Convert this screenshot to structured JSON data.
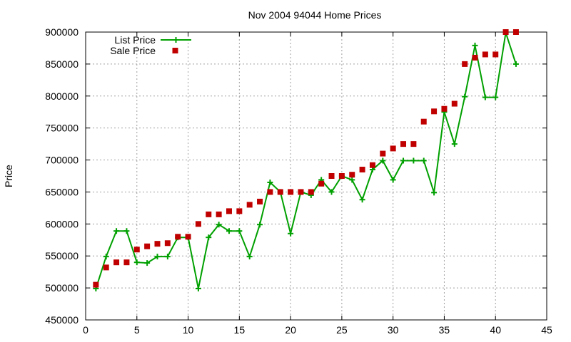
{
  "chart_data": {
    "type": "line",
    "title": "Nov 2004 94044 Home Prices",
    "xlabel": "",
    "ylabel": "Price",
    "xlim": [
      0,
      45
    ],
    "ylim": [
      450000,
      900000
    ],
    "x_ticks": [
      0,
      5,
      10,
      15,
      20,
      25,
      30,
      35,
      40,
      45
    ],
    "y_ticks": [
      450000,
      500000,
      550000,
      600000,
      650000,
      700000,
      750000,
      800000,
      850000,
      900000
    ],
    "grid": true,
    "legend_position": "top-left",
    "series": [
      {
        "name": "List Price",
        "kind": "line-points",
        "color": "#00a000",
        "x": [
          1,
          2,
          3,
          4,
          5,
          6,
          7,
          8,
          9,
          10,
          11,
          12,
          13,
          14,
          15,
          16,
          17,
          18,
          19,
          20,
          21,
          22,
          23,
          24,
          25,
          26,
          27,
          28,
          29,
          30,
          31,
          32,
          33,
          34,
          35,
          36,
          37,
          38,
          39,
          40,
          41,
          42
        ],
        "y": [
          499000,
          549000,
          589000,
          589000,
          540000,
          539000,
          549000,
          549000,
          579000,
          579000,
          499000,
          579000,
          599000,
          589000,
          589000,
          549000,
          599000,
          665000,
          650000,
          585000,
          650000,
          645000,
          669000,
          650000,
          675000,
          669000,
          638000,
          685000,
          699000,
          669000,
          699000,
          699000,
          699000,
          649000,
          775000,
          725000,
          799000,
          879000,
          798000,
          798000,
          899000,
          850000
        ]
      },
      {
        "name": "Sale Price",
        "kind": "points",
        "color": "#c00000",
        "x": [
          1,
          2,
          3,
          4,
          5,
          6,
          7,
          8,
          9,
          10,
          11,
          12,
          13,
          14,
          15,
          16,
          17,
          18,
          19,
          20,
          21,
          22,
          23,
          24,
          25,
          26,
          27,
          28,
          29,
          30,
          31,
          32,
          33,
          34,
          35,
          36,
          37,
          38,
          39,
          40,
          41,
          42
        ],
        "y": [
          505000,
          532000,
          540000,
          540000,
          560000,
          565000,
          569000,
          570000,
          580000,
          580000,
          600000,
          615000,
          615000,
          620000,
          620000,
          630000,
          635000,
          650000,
          650000,
          650000,
          650000,
          650000,
          663000,
          675000,
          675000,
          677000,
          685000,
          692000,
          710000,
          718000,
          725000,
          725000,
          760000,
          776000,
          780000,
          788000,
          850000,
          860000,
          865000,
          865000,
          900000,
          900000
        ]
      }
    ]
  }
}
